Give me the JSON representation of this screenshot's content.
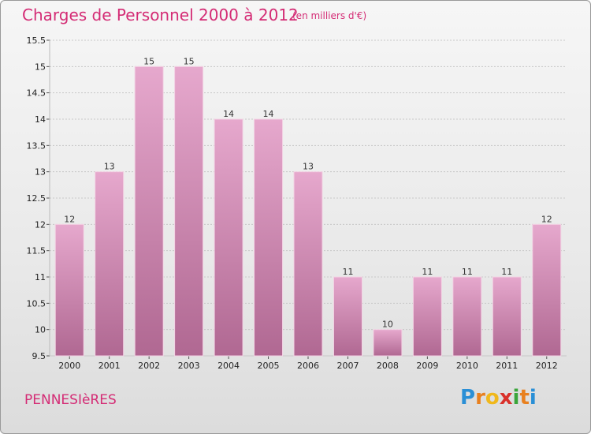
{
  "header": {
    "title": "Charges de Personnel 2000 à 2012",
    "subtitle": "(en milliers d'€)"
  },
  "footer": {
    "commune": "PENNESIèRES",
    "logo_letters": [
      "P",
      "r",
      "o",
      "x",
      "i",
      "t",
      "i"
    ],
    "logo_colors": [
      "#2a8fd6",
      "#e8801f",
      "#f0b81c",
      "#d9312b",
      "#3aa53a",
      "#e8801f",
      "#2a8fd6"
    ]
  },
  "colors": {
    "bar_top": "#e6a8cd",
    "bar_bottom": "#b06892",
    "grid": "#c8c8c8"
  },
  "chart_data": {
    "type": "bar",
    "categories": [
      "2000",
      "2001",
      "2002",
      "2003",
      "2004",
      "2005",
      "2006",
      "2007",
      "2008",
      "2009",
      "2010",
      "2011",
      "2012"
    ],
    "values": [
      12,
      13,
      15,
      15,
      14,
      14,
      13,
      11,
      10,
      11,
      11,
      11,
      12
    ],
    "yticks": [
      "9.5",
      "10",
      "10.5",
      "11",
      "11.5",
      "12",
      "12.5",
      "13",
      "13.5",
      "14",
      "14.5",
      "15",
      "15.5"
    ],
    "ylim": [
      9.5,
      15.5
    ],
    "grid": true,
    "xlabel": "",
    "ylabel": ""
  }
}
